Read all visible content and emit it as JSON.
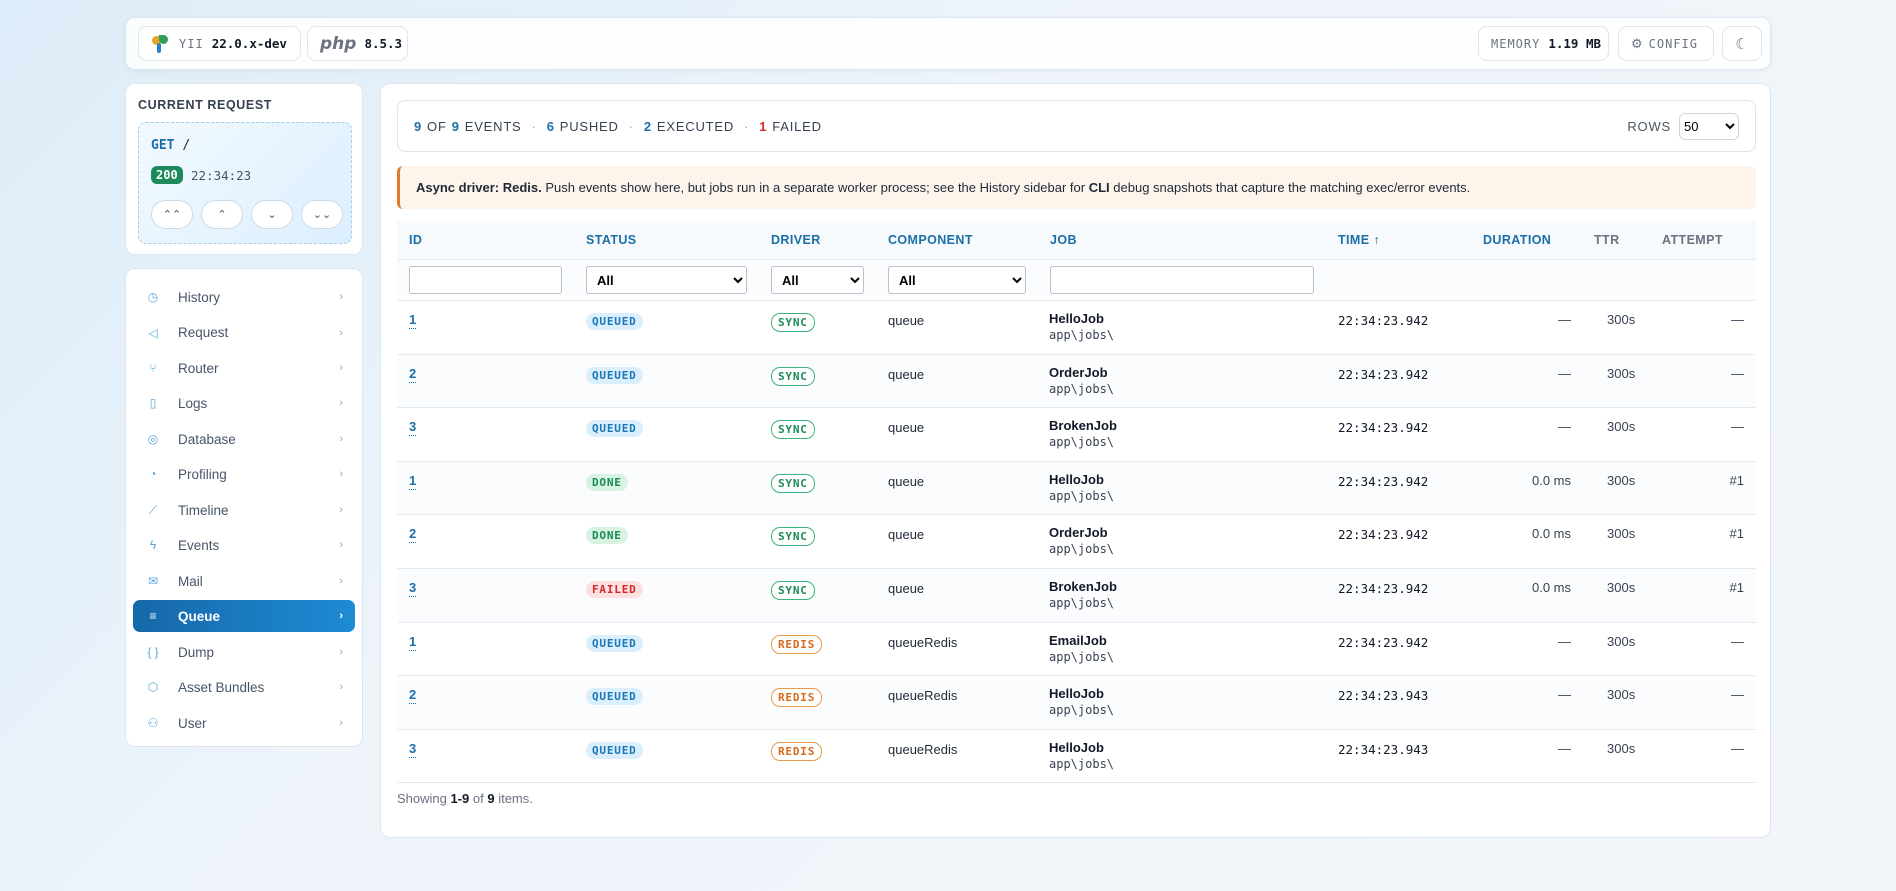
{
  "topbar": {
    "yii_label": "YII",
    "yii_version": "22.0.x-dev",
    "php_label": "php",
    "php_version": "8.5.3",
    "memory_label": "MEMORY",
    "memory_value": "1.19 MB",
    "config_label": "CONFIG"
  },
  "request": {
    "title": "CURRENT REQUEST",
    "method": "GET",
    "path": "/",
    "status": "200",
    "time": "22:34:23"
  },
  "sidebar": {
    "items": [
      {
        "label": "History",
        "icon": "history-icon",
        "glyph": "◷"
      },
      {
        "label": "Request",
        "icon": "send-icon",
        "glyph": "◁"
      },
      {
        "label": "Router",
        "icon": "route-icon",
        "glyph": "⑂"
      },
      {
        "label": "Logs",
        "icon": "file-icon",
        "glyph": "▯"
      },
      {
        "label": "Database",
        "icon": "database-icon",
        "glyph": "◎"
      },
      {
        "label": "Profiling",
        "icon": "gauge-icon",
        "glyph": "◔"
      },
      {
        "label": "Timeline",
        "icon": "chart-line-icon",
        "glyph": "⟋"
      },
      {
        "label": "Events",
        "icon": "bolt-icon",
        "glyph": "ϟ"
      },
      {
        "label": "Mail",
        "icon": "mail-icon",
        "glyph": "✉"
      },
      {
        "label": "Queue",
        "icon": "queue-icon",
        "glyph": "≡",
        "active": true
      },
      {
        "label": "Dump",
        "icon": "braces-icon",
        "glyph": "{ }"
      },
      {
        "label": "Asset Bundles",
        "icon": "package-icon",
        "glyph": "⬡"
      },
      {
        "label": "User",
        "icon": "user-icon",
        "glyph": "⚇"
      }
    ]
  },
  "summary": {
    "shown": "9",
    "of_label": "OF",
    "total": "9",
    "events_label": "EVENTS",
    "pushed": "6",
    "pushed_label": "PUSHED",
    "executed": "2",
    "executed_label": "EXECUTED",
    "failed": "1",
    "failed_label": "FAILED",
    "rows_label": "ROWS",
    "rows_value": "50"
  },
  "banner": {
    "lead": "Async driver: Redis.",
    "text1": " Push events show here, but jobs run in a separate worker process; see the History sidebar for ",
    "cli": "CLI",
    "text2": " debug snapshots that capture the matching exec/error events."
  },
  "table": {
    "headers": {
      "id": "ID",
      "status": "STATUS",
      "driver": "DRIVER",
      "component": "COMPONENT",
      "job": "JOB",
      "time": "TIME ↑",
      "duration": "DURATION",
      "ttr": "TTR",
      "attempt": "ATTEMPT"
    },
    "filters": {
      "status": "All",
      "driver": "All",
      "component": "All"
    },
    "rows": [
      {
        "id": "1",
        "status": "QUEUED",
        "driver": "SYNC",
        "component": "queue",
        "job": "HelloJob",
        "ns": "app\\jobs\\",
        "time": "22:34:23.942",
        "duration": "—",
        "ttr": "300s",
        "attempt": "—"
      },
      {
        "id": "2",
        "status": "QUEUED",
        "driver": "SYNC",
        "component": "queue",
        "job": "OrderJob",
        "ns": "app\\jobs\\",
        "time": "22:34:23.942",
        "duration": "—",
        "ttr": "300s",
        "attempt": "—"
      },
      {
        "id": "3",
        "status": "QUEUED",
        "driver": "SYNC",
        "component": "queue",
        "job": "BrokenJob",
        "ns": "app\\jobs\\",
        "time": "22:34:23.942",
        "duration": "—",
        "ttr": "300s",
        "attempt": "—"
      },
      {
        "id": "1",
        "status": "DONE",
        "driver": "SYNC",
        "component": "queue",
        "job": "HelloJob",
        "ns": "app\\jobs\\",
        "time": "22:34:23.942",
        "duration": "0.0 ms",
        "ttr": "300s",
        "attempt": "#1"
      },
      {
        "id": "2",
        "status": "DONE",
        "driver": "SYNC",
        "component": "queue",
        "job": "OrderJob",
        "ns": "app\\jobs\\",
        "time": "22:34:23.942",
        "duration": "0.0 ms",
        "ttr": "300s",
        "attempt": "#1"
      },
      {
        "id": "3",
        "status": "FAILED",
        "driver": "SYNC",
        "component": "queue",
        "job": "BrokenJob",
        "ns": "app\\jobs\\",
        "time": "22:34:23.942",
        "duration": "0.0 ms",
        "ttr": "300s",
        "attempt": "#1"
      },
      {
        "id": "1",
        "status": "QUEUED",
        "driver": "REDIS",
        "component": "queueRedis",
        "job": "EmailJob",
        "ns": "app\\jobs\\",
        "time": "22:34:23.942",
        "duration": "—",
        "ttr": "300s",
        "attempt": "—"
      },
      {
        "id": "2",
        "status": "QUEUED",
        "driver": "REDIS",
        "component": "queueRedis",
        "job": "HelloJob",
        "ns": "app\\jobs\\",
        "time": "22:34:23.943",
        "duration": "—",
        "ttr": "300s",
        "attempt": "—"
      },
      {
        "id": "3",
        "status": "QUEUED",
        "driver": "REDIS",
        "component": "queueRedis",
        "job": "HelloJob",
        "ns": "app\\jobs\\",
        "time": "22:34:23.943",
        "duration": "—",
        "ttr": "300s",
        "attempt": "—"
      }
    ]
  },
  "footer": {
    "prefix": "Showing ",
    "range": "1-9",
    "of": " of ",
    "total": "9",
    "suffix": " items."
  }
}
